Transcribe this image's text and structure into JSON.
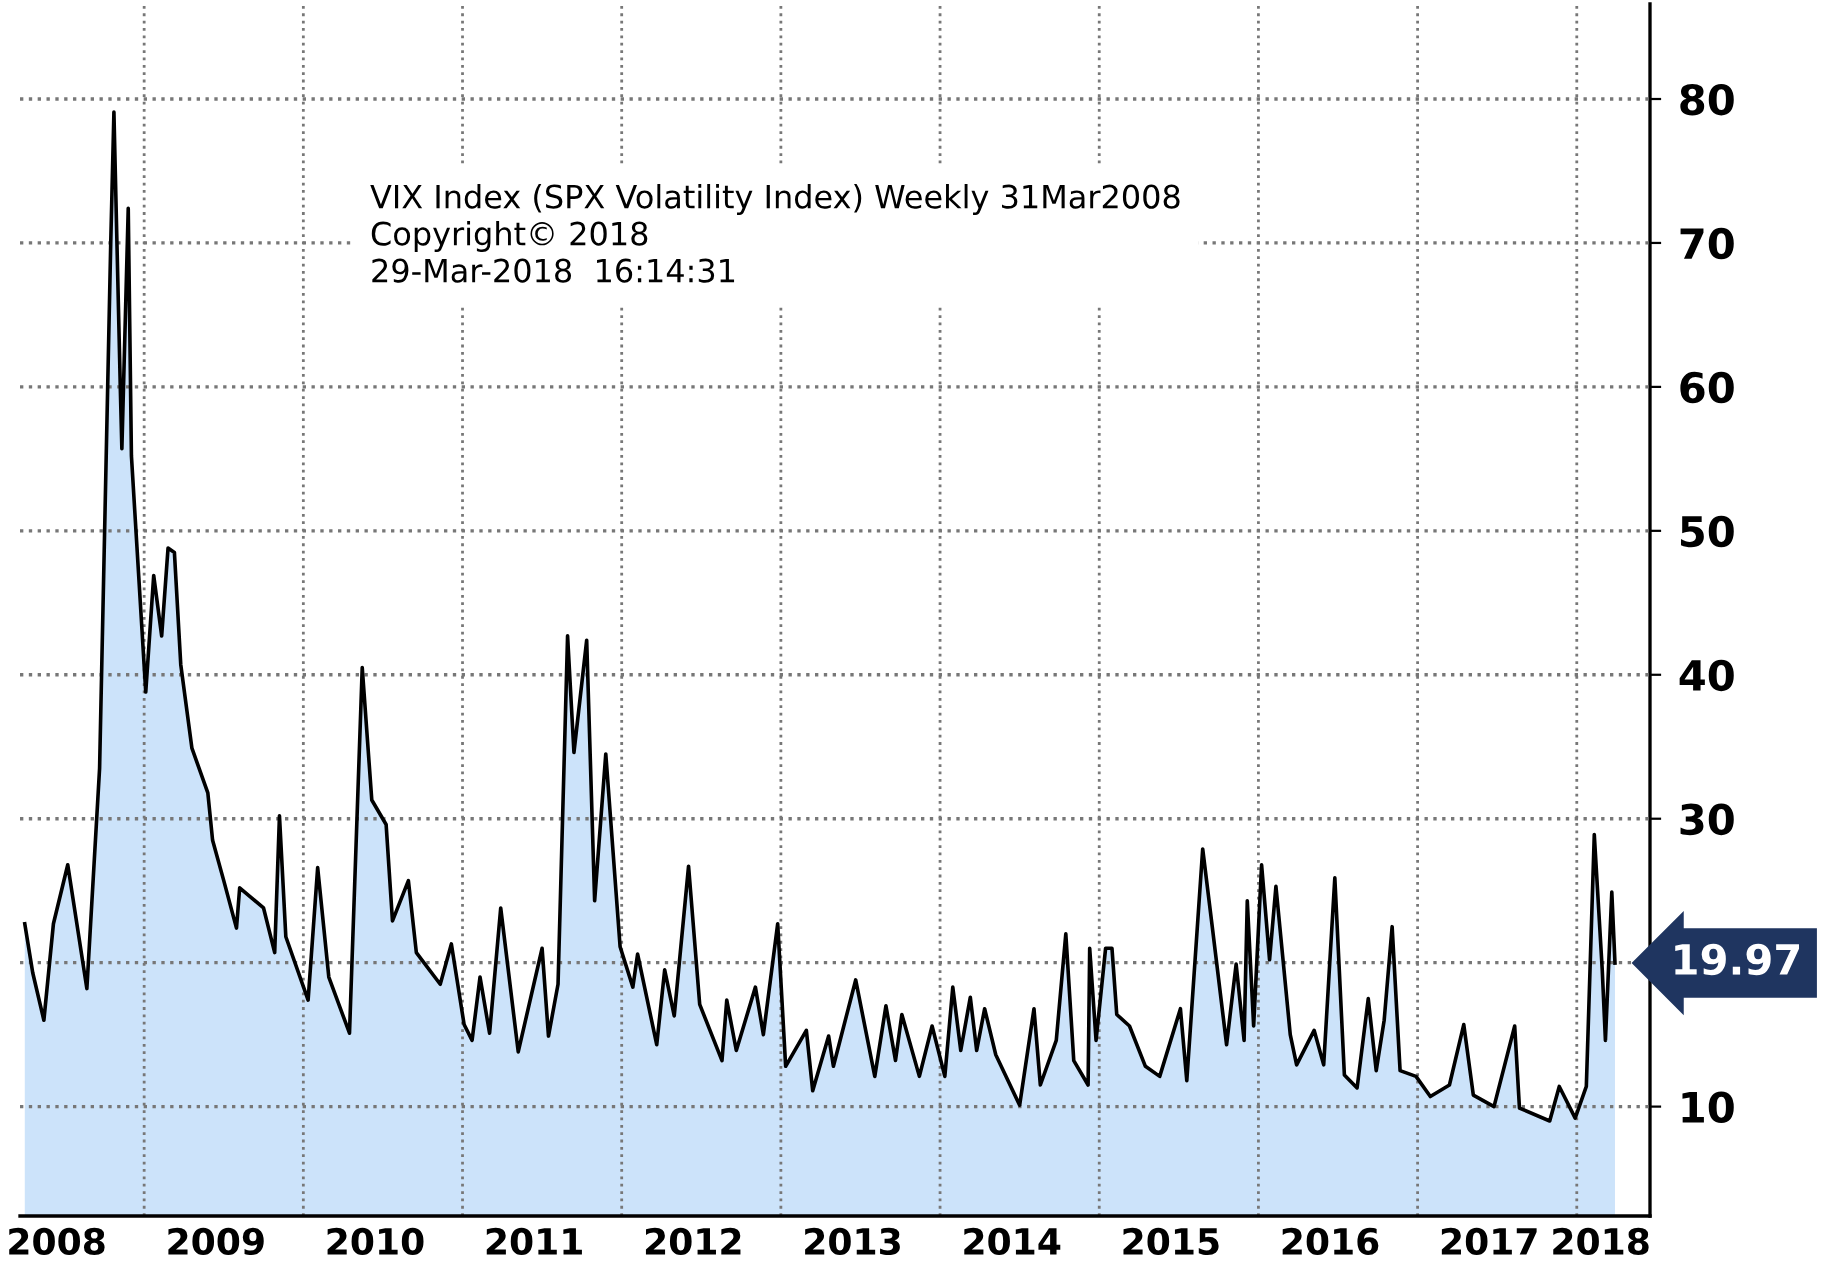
{
  "chart_data": {
    "type": "area",
    "annotations": [
      "VIX Index (SPX Volatility Index) Weekly 31Mar2008",
      "Copyright© 2018",
      "29-Mar-2018  16:14:31",
      "19.97"
    ],
    "x": [
      2008.25,
      2008.3,
      2008.37,
      2008.43,
      2008.52,
      2008.64,
      2008.72,
      2008.79,
      2008.81,
      2008.85,
      2008.86,
      2008.9,
      2008.92,
      2009.01,
      2009.06,
      2009.11,
      2009.15,
      2009.19,
      2009.23,
      2009.3,
      2009.4,
      2009.43,
      2009.5,
      2009.58,
      2009.6,
      2009.75,
      2009.82,
      2009.85,
      2009.89,
      2010.03,
      2010.09,
      2010.16,
      2010.29,
      2010.37,
      2010.43,
      2010.52,
      2010.56,
      2010.66,
      2010.71,
      2010.86,
      2010.93,
      2011.01,
      2011.06,
      2011.11,
      2011.17,
      2011.24,
      2011.35,
      2011.5,
      2011.54,
      2011.6,
      2011.66,
      2011.7,
      2011.78,
      2011.83,
      2011.9,
      2011.99,
      2012.07,
      2012.1,
      2012.22,
      2012.27,
      2012.33,
      2012.42,
      2012.49,
      2012.63,
      2012.66,
      2012.72,
      2012.84,
      2012.89,
      2012.98,
      2013.03,
      2013.16,
      2013.2,
      2013.3,
      2013.33,
      2013.47,
      2013.59,
      2013.66,
      2013.72,
      2013.76,
      2013.87,
      2013.95,
      2014.03,
      2014.08,
      2014.13,
      2014.19,
      2014.23,
      2014.28,
      2014.35,
      2014.5,
      2014.59,
      2014.63,
      2014.73,
      2014.79,
      2014.84,
      2014.93,
      2014.94,
      2014.98,
      2015.04,
      2015.08,
      2015.11,
      2015.19,
      2015.29,
      2015.38,
      2015.51,
      2015.55,
      2015.65,
      2015.71,
      2015.8,
      2015.86,
      2015.91,
      2015.93,
      2015.97,
      2016.02,
      2016.07,
      2016.11,
      2016.2,
      2016.24,
      2016.35,
      2016.41,
      2016.48,
      2016.54,
      2016.62,
      2016.69,
      2016.74,
      2016.79,
      2016.84,
      2016.89,
      2016.99,
      2017.08,
      2017.2,
      2017.29,
      2017.35,
      2017.48,
      2017.61,
      2017.64,
      2017.83,
      2017.89,
      2017.99,
      2018.06,
      2018.11,
      2018.16,
      2018.18,
      2018.22,
      2018.24
    ],
    "series": [
      {
        "color": "#cce3fa",
        "values": [
          22.7,
          19.3,
          16,
          22.7,
          26.8,
          18.2,
          33.5,
          70,
          79.1,
          60,
          55.7,
          72.4,
          55.2,
          38.8,
          46.9,
          42.7,
          48.8,
          48.5,
          40.7,
          34.9,
          31.8,
          28.5,
          25.7,
          22.4,
          25.2,
          23.8,
          20.7,
          30.2,
          21.8,
          17.4,
          26.6,
          19,
          15.1,
          40.5,
          31.3,
          29.6,
          22.9,
          25.7,
          20.7,
          18.5,
          21.3,
          15.7,
          14.6,
          19,
          15.1,
          23.8,
          13.8,
          21,
          14.9,
          18.5,
          42.7,
          34.6,
          42.4,
          24.3,
          34.5,
          21.1,
          18.3,
          20.6,
          14.3,
          19.5,
          16.3,
          26.7,
          17.1,
          13.2,
          17.4,
          13.9,
          18.3,
          15,
          22.7,
          12.8,
          15.3,
          11.1,
          14.9,
          12.8,
          18.8,
          12.1,
          17,
          13.2,
          16.4,
          12.1,
          15.6,
          12.1,
          18.3,
          13.9,
          17.6,
          13.9,
          16.8,
          13.6,
          10.1,
          16.8,
          11.5,
          14.6,
          22,
          13.2,
          11.5,
          21,
          14.6,
          21,
          21,
          16.4,
          15.6,
          12.8,
          12.1,
          16.8,
          11.8,
          27.9,
          22.5,
          14.3,
          19.9,
          14.6,
          24.3,
          15.6,
          26.8,
          20.2,
          25.3,
          15,
          12.9,
          15.3,
          12.9,
          25.9,
          12.2,
          11.3,
          17.5,
          12.5,
          16,
          22.5,
          12.5,
          12.1,
          10.7,
          11.5,
          15.7,
          10.8,
          10,
          15.6,
          9.9,
          9,
          11.4,
          9.2,
          11.4,
          28.9,
          19.5,
          14.6,
          24.9,
          19.97
        ]
      }
    ],
    "xlim": [
      2008.22,
      2018.46
    ],
    "xticks": [
      {
        "value": 2008.45,
        "label": "2008"
      },
      {
        "value": 2009,
        "label": null
      },
      {
        "value": 2009.45,
        "label": "2009"
      },
      {
        "value": 2010,
        "label": null
      },
      {
        "value": 2010.45,
        "label": "2010"
      },
      {
        "value": 2011,
        "label": null
      },
      {
        "value": 2011.45,
        "label": "2011"
      },
      {
        "value": 2012,
        "label": null
      },
      {
        "value": 2012.45,
        "label": "2012"
      },
      {
        "value": 2013,
        "label": null
      },
      {
        "value": 2013.45,
        "label": "2013"
      },
      {
        "value": 2014,
        "label": null
      },
      {
        "value": 2014.45,
        "label": "2014"
      },
      {
        "value": 2015,
        "label": null
      },
      {
        "value": 2015.45,
        "label": "2015"
      },
      {
        "value": 2016,
        "label": null
      },
      {
        "value": 2016.45,
        "label": "2016"
      },
      {
        "value": 2017,
        "label": null
      },
      {
        "value": 2017.45,
        "label": "2017"
      },
      {
        "value": 2018,
        "label": null
      },
      {
        "value": 2018.15,
        "label": "2018"
      }
    ],
    "ylim": [
      2.4,
      86.6
    ],
    "yticks": [
      10,
      {
        "value": 20,
        "label": null
      },
      30,
      40,
      50,
      60,
      70,
      80
    ],
    "grid": true,
    "legend": false
  }
}
